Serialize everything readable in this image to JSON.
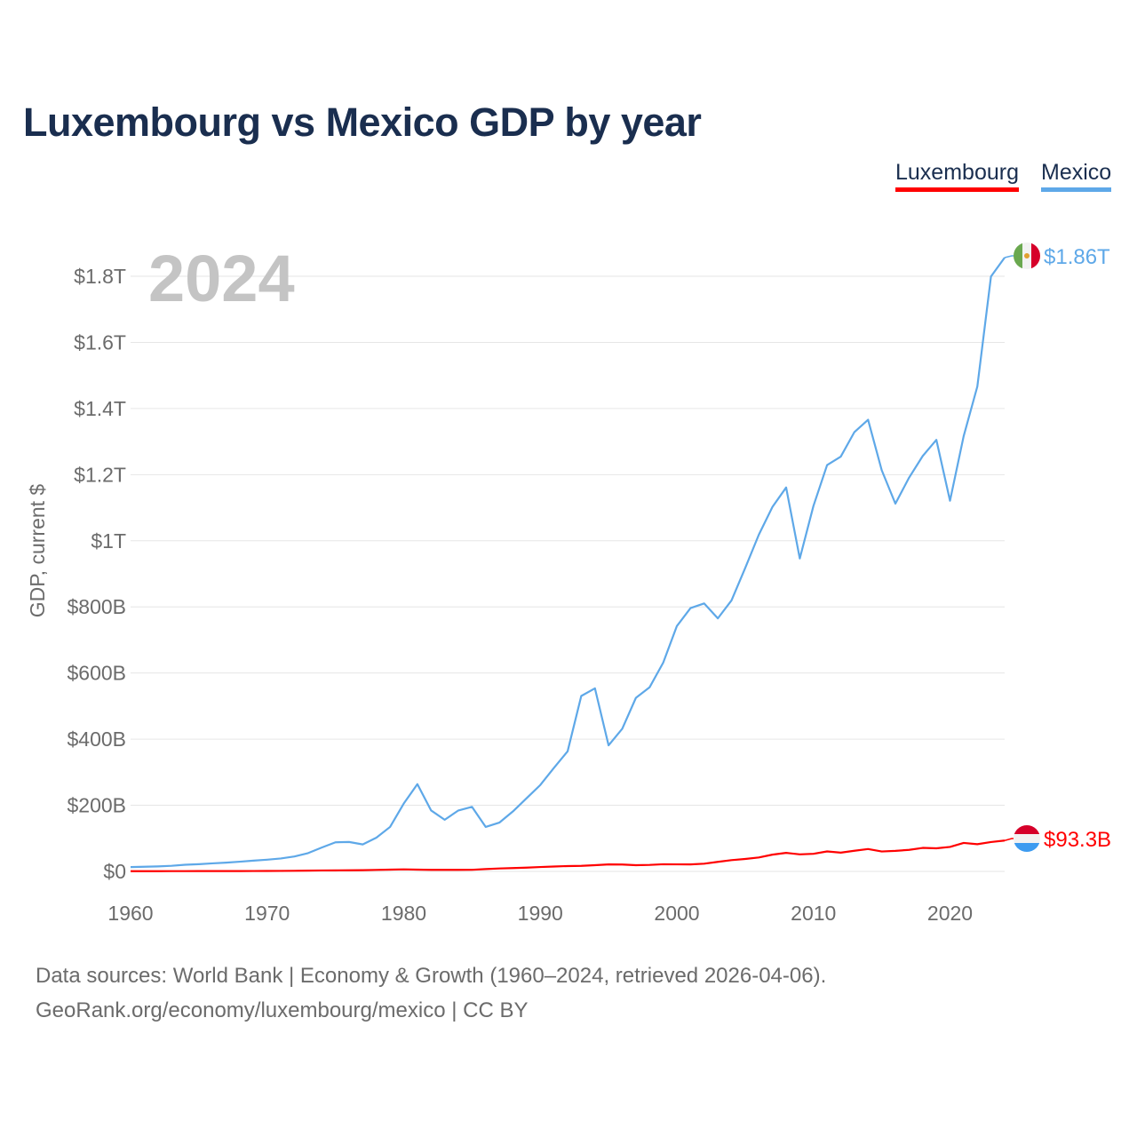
{
  "title": "Luxembourg vs Mexico GDP by year",
  "legend": [
    {
      "label": "Luxembourg",
      "color": "#ff0000"
    },
    {
      "label": "Mexico",
      "color": "#5ea8e8"
    }
  ],
  "footer": {
    "line1": "Data sources: World Bank | Economy & Growth (1960–2024, retrieved 2026-04-06).",
    "line2": "GeoRank.org/economy/luxembourg/mexico | CC BY"
  },
  "chart_data": {
    "type": "line",
    "title": "Luxembourg vs Mexico GDP by year",
    "xlabel": "",
    "ylabel": "GDP, current $",
    "year_watermark": "2024",
    "xlim": [
      1960,
      2024
    ],
    "ylim": [
      0,
      1.8
    ],
    "y_unit": "trillion USD",
    "grid": true,
    "legend_position": "top-right",
    "x_ticks": [
      1960,
      1970,
      1980,
      1990,
      2000,
      2010,
      2020
    ],
    "y_ticks": [
      {
        "value": 0,
        "label": "$0"
      },
      {
        "value": 0.2,
        "label": "$200B"
      },
      {
        "value": 0.4,
        "label": "$400B"
      },
      {
        "value": 0.6,
        "label": "$600B"
      },
      {
        "value": 0.8,
        "label": "$800B"
      },
      {
        "value": 1.0,
        "label": "$1T"
      },
      {
        "value": 1.2,
        "label": "$1.2T"
      },
      {
        "value": 1.4,
        "label": "$1.4T"
      },
      {
        "value": 1.6,
        "label": "$1.6T"
      },
      {
        "value": 1.8,
        "label": "$1.8T"
      }
    ],
    "x": [
      1960,
      1961,
      1962,
      1963,
      1964,
      1965,
      1966,
      1967,
      1968,
      1969,
      1970,
      1971,
      1972,
      1973,
      1974,
      1975,
      1976,
      1977,
      1978,
      1979,
      1980,
      1981,
      1982,
      1983,
      1984,
      1985,
      1986,
      1987,
      1988,
      1989,
      1990,
      1991,
      1992,
      1993,
      1994,
      1995,
      1996,
      1997,
      1998,
      1999,
      2000,
      2001,
      2002,
      2003,
      2004,
      2005,
      2006,
      2007,
      2008,
      2009,
      2010,
      2011,
      2012,
      2013,
      2014,
      2015,
      2016,
      2017,
      2018,
      2019,
      2020,
      2021,
      2022,
      2023,
      2024
    ],
    "series": [
      {
        "name": "Mexico",
        "color": "#5ea8e8",
        "end_label": "$1.86T",
        "flag": "mexico-flag",
        "values": [
          0.013,
          0.0142,
          0.0152,
          0.0169,
          0.0201,
          0.0218,
          0.0243,
          0.0266,
          0.0294,
          0.0325,
          0.0355,
          0.0392,
          0.0452,
          0.0553,
          0.0722,
          0.088,
          0.089,
          0.0816,
          0.102,
          0.1345,
          0.2051,
          0.2639,
          0.1846,
          0.1562,
          0.1843,
          0.1952,
          0.1346,
          0.1475,
          0.1816,
          0.2214,
          0.2613,
          0.3131,
          0.3632,
          0.5306,
          0.5537,
          0.3813,
          0.4313,
          0.5249,
          0.5567,
          0.6313,
          0.7421,
          0.7963,
          0.8104,
          0.7653,
          0.8196,
          0.9173,
          1.0182,
          1.1024,
          1.1611,
          0.9464,
          1.1054,
          1.229,
          1.2545,
          1.3288,
          1.366,
          1.2133,
          1.1122,
          1.1907,
          1.2563,
          1.3052,
          1.1211,
          1.3166,
          1.4665,
          1.7994,
          1.8564
        ]
      },
      {
        "name": "Luxembourg",
        "color": "#ff0000",
        "end_label": "$93.3B",
        "flag": "luxembourg-flag",
        "values": [
          0.0007,
          0.00074,
          0.00075,
          0.0008,
          0.00087,
          0.00094,
          0.00097,
          0.001,
          0.0011,
          0.0012,
          0.0013,
          0.0015,
          0.0018,
          0.0024,
          0.0029,
          0.0031,
          0.0034,
          0.0037,
          0.0045,
          0.0053,
          0.0062,
          0.0054,
          0.0048,
          0.0048,
          0.0047,
          0.0049,
          0.0071,
          0.0089,
          0.0101,
          0.0114,
          0.0133,
          0.0147,
          0.0162,
          0.0168,
          0.0188,
          0.0211,
          0.0208,
          0.0189,
          0.0196,
          0.0216,
          0.0213,
          0.0211,
          0.0233,
          0.0289,
          0.0341,
          0.0377,
          0.0421,
          0.0507,
          0.0561,
          0.0515,
          0.0532,
          0.0604,
          0.0568,
          0.0624,
          0.0676,
          0.0603,
          0.0621,
          0.0652,
          0.0711,
          0.0699,
          0.0741,
          0.0862,
          0.0823,
          0.0889,
          0.0933
        ]
      }
    ]
  }
}
